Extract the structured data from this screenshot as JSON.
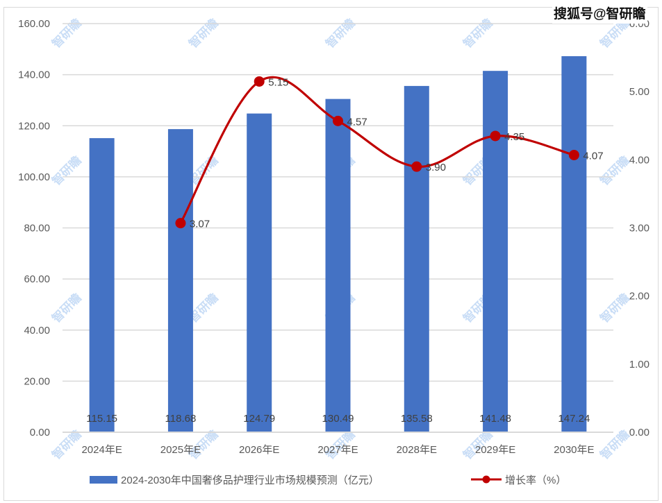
{
  "credit": "搜狐号@智研瞻",
  "watermark": "智研瞻",
  "colors": {
    "bar": "#4472c4",
    "line": "#c00000",
    "grid": "#d9d9d9",
    "text": "#595959"
  },
  "chart_data": {
    "type": "bar+line",
    "title": "",
    "categories": [
      "2024年E",
      "2025年E",
      "2026年E",
      "2027年E",
      "2028年E",
      "2029年E",
      "2030年E"
    ],
    "series": [
      {
        "name": "2024-2030年中国奢侈品护理行业市场规模预测（亿元）",
        "type": "bar",
        "axis": "left",
        "values": [
          115.15,
          118.68,
          124.79,
          130.49,
          135.58,
          141.48,
          147.24
        ]
      },
      {
        "name": "增长率（%）",
        "type": "line",
        "axis": "right",
        "values": [
          null,
          3.07,
          5.15,
          4.57,
          3.9,
          4.35,
          4.07
        ]
      }
    ],
    "y_left": {
      "ticks": [
        "0.00",
        "20.00",
        "40.00",
        "60.00",
        "80.00",
        "100.00",
        "120.00",
        "140.00",
        "160.00"
      ],
      "ylim": [
        0,
        160
      ]
    },
    "y_right": {
      "ticks": [
        "0.00",
        "1.00",
        "2.00",
        "3.00",
        "4.00",
        "5.00",
        "6.00"
      ],
      "ylim": [
        0,
        6
      ]
    },
    "grid": true,
    "legend_position": "bottom",
    "bar_labels": [
      "115.15",
      "118.68",
      "124.79",
      "130.49",
      "135.58",
      "141.48",
      "147.24"
    ],
    "line_labels": [
      "",
      "3.07",
      "5.15",
      "4.57",
      "3.90",
      "4.35",
      "4.07"
    ]
  },
  "legend": {
    "bar_label": "2024-2030年中国奢侈品护理行业市场规模预测（亿元）",
    "line_label": "增长率（%）"
  }
}
